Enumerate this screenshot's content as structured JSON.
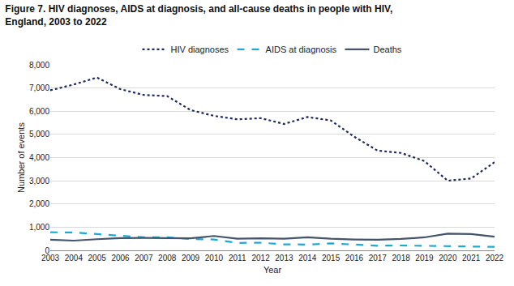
{
  "chart_data": {
    "type": "line",
    "title": "Figure 7. HIV diagnoses, AIDS at diagnosis, and all-cause deaths in people with HIV, England, 2003 to 2022",
    "x_label": "Year",
    "y_label": "Number of events",
    "categories": [
      "2003",
      "2004",
      "2005",
      "2006",
      "2007",
      "2008",
      "2009",
      "2010",
      "2011",
      "2012",
      "2013",
      "2014",
      "2015",
      "2016",
      "2017",
      "2018",
      "2019",
      "2020",
      "2021",
      "2022"
    ],
    "series": [
      {
        "name": "HIV diagnoses",
        "color": "#1f2a5a",
        "line_style": "dotted",
        "values": [
          6900,
          7150,
          7450,
          6950,
          6700,
          6650,
          6050,
          5800,
          5650,
          5700,
          5450,
          5750,
          5600,
          4900,
          4300,
          4200,
          3850,
          3000,
          3100,
          3800
        ]
      },
      {
        "name": "AIDS at diagnosis",
        "color": "#1ea8d8",
        "line_style": "dashed",
        "values": [
          780,
          770,
          700,
          620,
          560,
          560,
          490,
          470,
          320,
          330,
          260,
          250,
          300,
          250,
          200,
          210,
          200,
          170,
          180,
          150
        ]
      },
      {
        "name": "Deaths",
        "color": "#44546a",
        "line_style": "solid",
        "values": [
          460,
          420,
          480,
          530,
          540,
          540,
          520,
          620,
          500,
          520,
          500,
          560,
          500,
          470,
          460,
          490,
          560,
          720,
          700,
          590
        ]
      }
    ],
    "ylim": [
      0,
      8000
    ],
    "yticks": [
      0,
      {
        "value": 1000,
        "label": "1,000"
      },
      {
        "value": 2000,
        "label": "2,000"
      },
      {
        "value": 3000,
        "label": "3,000"
      },
      {
        "value": 4000,
        "label": "4,000"
      },
      {
        "value": 5000,
        "label": "5,000"
      },
      {
        "value": 6000,
        "label": "6,000"
      },
      {
        "value": 7000,
        "label": "7,000"
      },
      {
        "value": 8000,
        "label": "8,000"
      }
    ],
    "grid": true,
    "legend": "top"
  }
}
